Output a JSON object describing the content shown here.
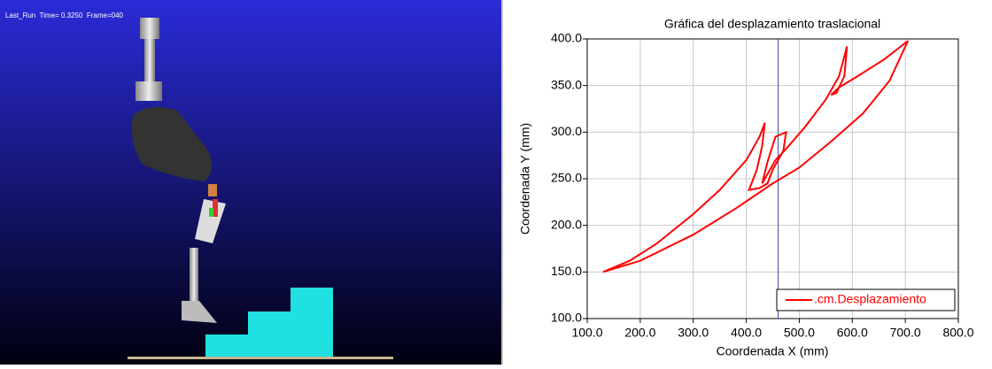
{
  "viewport": {
    "status": "Last_Run  Time= 0.3250  Frame=040"
  },
  "chart_data": {
    "type": "line",
    "title": "Gráfica del desplazamiento traslacional",
    "x_label": "Coordenada X (mm)",
    "y_label": "Coordenada Y (mm)",
    "xlim": [
      100,
      800
    ],
    "ylim": [
      100,
      400
    ],
    "xticks": [
      {
        "value": 100,
        "label": "100.0"
      },
      {
        "value": 200,
        "label": "200.0"
      },
      {
        "value": 300,
        "label": "300.0"
      },
      {
        "value": 400,
        "label": "400.0"
      },
      {
        "value": 500,
        "label": "500.0"
      },
      {
        "value": 600,
        "label": "600.0"
      },
      {
        "value": 700,
        "label": "700.0"
      },
      {
        "value": 800,
        "label": "800.0"
      }
    ],
    "yticks": [
      {
        "value": 100,
        "label": "100.0"
      },
      {
        "value": 150,
        "label": "150.0"
      },
      {
        "value": 200,
        "label": "200.0"
      },
      {
        "value": 250,
        "label": "250.0"
      },
      {
        "value": 300,
        "label": "300.0"
      },
      {
        "value": 350,
        "label": "350.0"
      },
      {
        "value": 400,
        "label": "400.0"
      }
    ],
    "grid": true,
    "legend": "bottom-right",
    "cursor_x": 460,
    "series": [
      {
        "name": ".cm.Desplazamiento",
        "color": "#ff0000",
        "x": [
          130,
          200,
          300,
          380,
          450,
          500,
          560,
          620,
          670,
          705,
          660,
          610,
          575,
          560,
          570,
          585,
          590,
          575,
          550,
          510,
          475,
          455,
          440,
          430,
          440,
          455,
          475,
          470,
          450,
          440,
          425,
          405,
          410,
          420,
          430,
          435,
          425,
          400,
          350,
          300,
          230,
          180,
          130
        ],
        "values": [
          150,
          162,
          190,
          218,
          245,
          262,
          290,
          320,
          355,
          398,
          378,
          360,
          348,
          340,
          342,
          360,
          392,
          360,
          335,
          305,
          282,
          270,
          255,
          245,
          268,
          295,
          300,
          280,
          260,
          245,
          240,
          238,
          245,
          260,
          285,
          310,
          295,
          270,
          238,
          212,
          180,
          162,
          150
        ]
      }
    ]
  }
}
